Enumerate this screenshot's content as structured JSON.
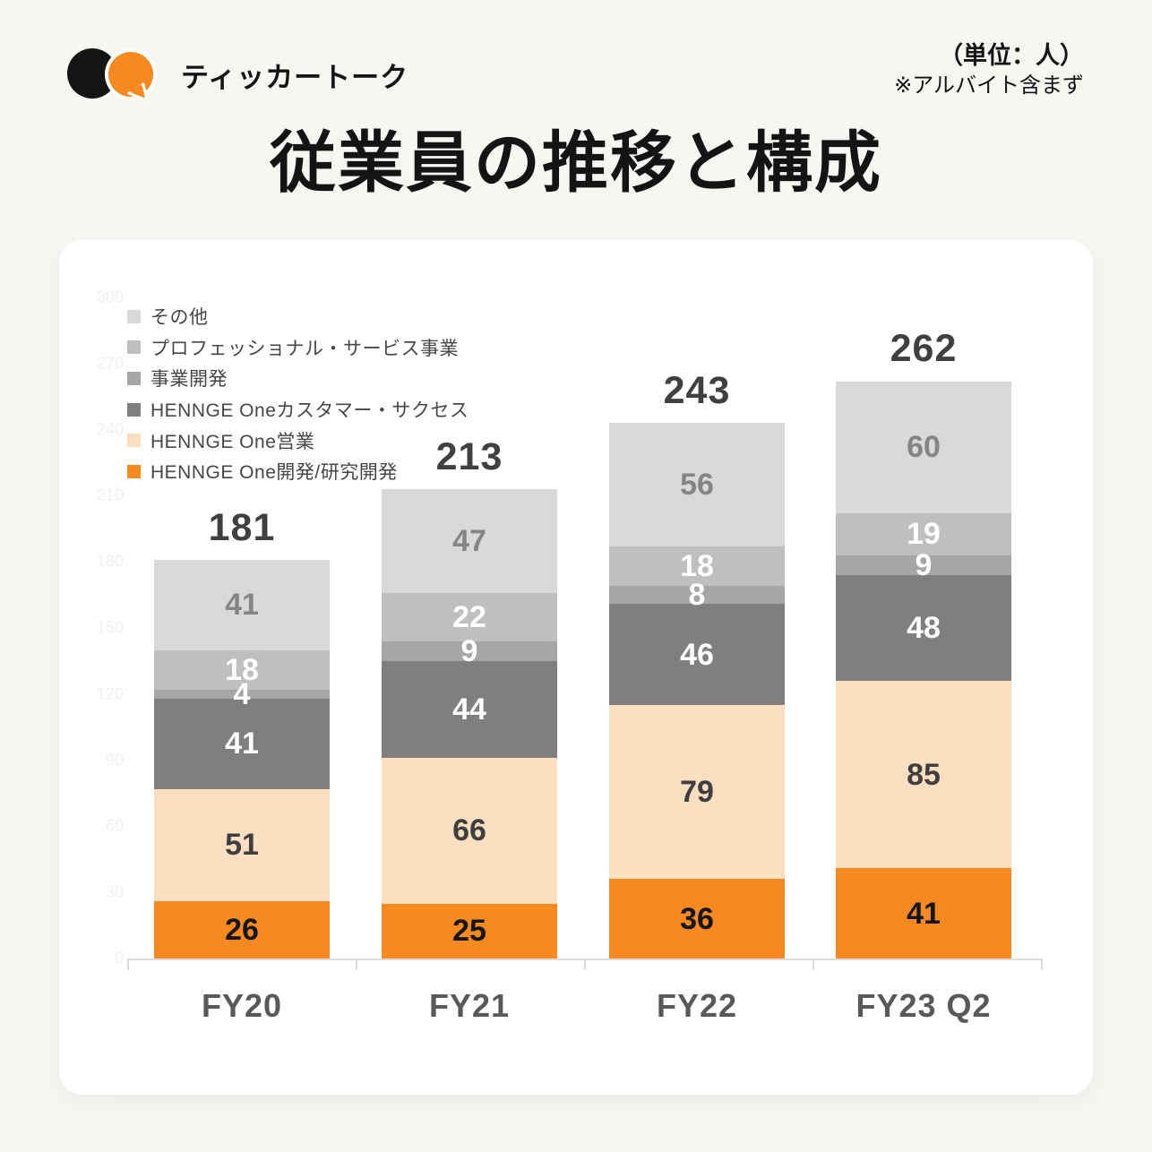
{
  "header": {
    "logo_text": "ティッカートーク",
    "unit_note": "（単位：人）",
    "exclusion_note": "※アルバイト含まず",
    "title": "従業員の推移と構成"
  },
  "brand": {
    "black": "#141414",
    "orange": "#f6891f"
  },
  "chart_data": {
    "type": "bar",
    "stacked": true,
    "title": "従業員の推移と構成",
    "unit": "人",
    "categories": [
      "FY20",
      "FY21",
      "FY22",
      "FY23 Q2"
    ],
    "totals": [
      181,
      213,
      243,
      262
    ],
    "series": [
      {
        "name": "その他",
        "values": [
          41,
          47,
          56,
          60
        ],
        "color": "#d9d9d9",
        "label_color": "#858585"
      },
      {
        "name": "プロフェッショナル・サービス事業",
        "values": [
          18,
          22,
          18,
          19
        ],
        "color": "#bfbfbf",
        "label_color": "#ffffff"
      },
      {
        "name": "事業開発",
        "values": [
          4,
          9,
          8,
          9
        ],
        "color": "#a6a6a6",
        "label_color": "#ffffff"
      },
      {
        "name": "HENNGE Oneカスタマー・サクセス",
        "values": [
          41,
          44,
          46,
          48
        ],
        "color": "#7f7f7f",
        "label_color": "#ffffff"
      },
      {
        "name": "HENNGE One営業",
        "values": [
          51,
          66,
          79,
          85
        ],
        "color": "#fcdfc0",
        "label_color": "#3f3f3f"
      },
      {
        "name": "HENNGE One開発/研究開発",
        "values": [
          26,
          25,
          36,
          41
        ],
        "color": "#f6891f",
        "label_color": "#161616"
      }
    ],
    "y_axis": {
      "min": 0,
      "max": 300,
      "step": 30,
      "style": "faint"
    },
    "legend_position": "top-left",
    "grid": false,
    "total_label_color": "#404040",
    "axis_label_color": "#595959"
  }
}
